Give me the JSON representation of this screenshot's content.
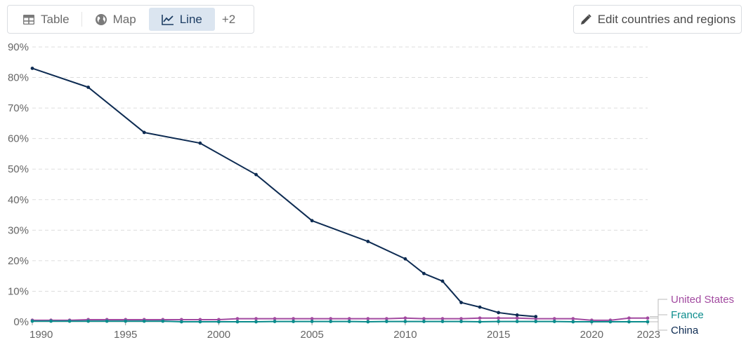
{
  "tabs": [
    {
      "label": "Table",
      "icon": "table-icon",
      "active": false
    },
    {
      "label": "Map",
      "icon": "globe-icon",
      "active": false
    },
    {
      "label": "Line",
      "icon": "line-chart-icon",
      "active": true
    }
  ],
  "more_tabs_label": "+2",
  "edit_button": {
    "label": "Edit countries and regions",
    "icon": "pencil-icon"
  },
  "colors": {
    "china": "#0d2b52",
    "france": "#0b8c8c",
    "united_states": "#a24aa0",
    "grid": "#dddddd",
    "active_tab_bg": "#dbe5f0"
  },
  "chart_data": {
    "type": "line",
    "xlim": [
      1990,
      2023
    ],
    "ylim": [
      0,
      90
    ],
    "x_ticks": [
      1990,
      1995,
      2000,
      2005,
      2010,
      2015,
      2020,
      2023
    ],
    "y_ticks": [
      0,
      10,
      20,
      30,
      40,
      50,
      60,
      70,
      80,
      90
    ],
    "y_tick_labels": [
      "0%",
      "10%",
      "20%",
      "30%",
      "40%",
      "50%",
      "60%",
      "70%",
      "80%",
      "90%"
    ],
    "grid": "horizontal-dashed",
    "legend": "right",
    "series": [
      {
        "name": "United States",
        "color": "#a24aa0",
        "x": [
          1990,
          1991,
          1992,
          1993,
          1994,
          1995,
          1996,
          1997,
          1998,
          1999,
          2000,
          2001,
          2002,
          2003,
          2004,
          2005,
          2006,
          2007,
          2008,
          2009,
          2010,
          2011,
          2012,
          2013,
          2014,
          2015,
          2016,
          2017,
          2018,
          2019,
          2020,
          2021,
          2022,
          2023
        ],
        "y": [
          0.5,
          0.5,
          0.5,
          0.7,
          0.7,
          0.7,
          0.7,
          0.7,
          0.7,
          0.7,
          0.7,
          1.0,
          1.0,
          1.0,
          1.0,
          1.0,
          1.0,
          1.0,
          1.0,
          1.0,
          1.2,
          1.0,
          1.0,
          1.0,
          1.2,
          1.2,
          1.2,
          1.0,
          1.0,
          1.0,
          0.5,
          0.5,
          1.2,
          1.2
        ]
      },
      {
        "name": "France",
        "color": "#0b8c8c",
        "x": [
          1990,
          1991,
          1992,
          1993,
          1994,
          1995,
          1996,
          1997,
          1998,
          1999,
          2000,
          2001,
          2002,
          2003,
          2004,
          2005,
          2006,
          2007,
          2008,
          2009,
          2010,
          2011,
          2012,
          2013,
          2014,
          2015,
          2016,
          2017,
          2018,
          2019,
          2020,
          2021,
          2022,
          2023
        ],
        "y": [
          0.2,
          0.2,
          0.2,
          0.2,
          0.2,
          0.2,
          0.2,
          0.2,
          0,
          0,
          0,
          0,
          0,
          0.1,
          0.1,
          0.1,
          0.1,
          0.1,
          0,
          0.1,
          0.1,
          0.1,
          0.1,
          0.1,
          0,
          0.1,
          0.1,
          0.1,
          0.1,
          0,
          0,
          0,
          0,
          0
        ]
      },
      {
        "name": "China",
        "color": "#0d2b52",
        "x": [
          1990,
          1993,
          1996,
          1999,
          2002,
          2005,
          2008,
          2010,
          2011,
          2012,
          2013,
          2014,
          2015,
          2016,
          2017
        ],
        "y": [
          83.0,
          76.8,
          62.0,
          58.5,
          48.2,
          33.1,
          26.3,
          20.6,
          15.8,
          13.3,
          6.3,
          4.8,
          3.0,
          2.2,
          1.7
        ]
      }
    ]
  }
}
